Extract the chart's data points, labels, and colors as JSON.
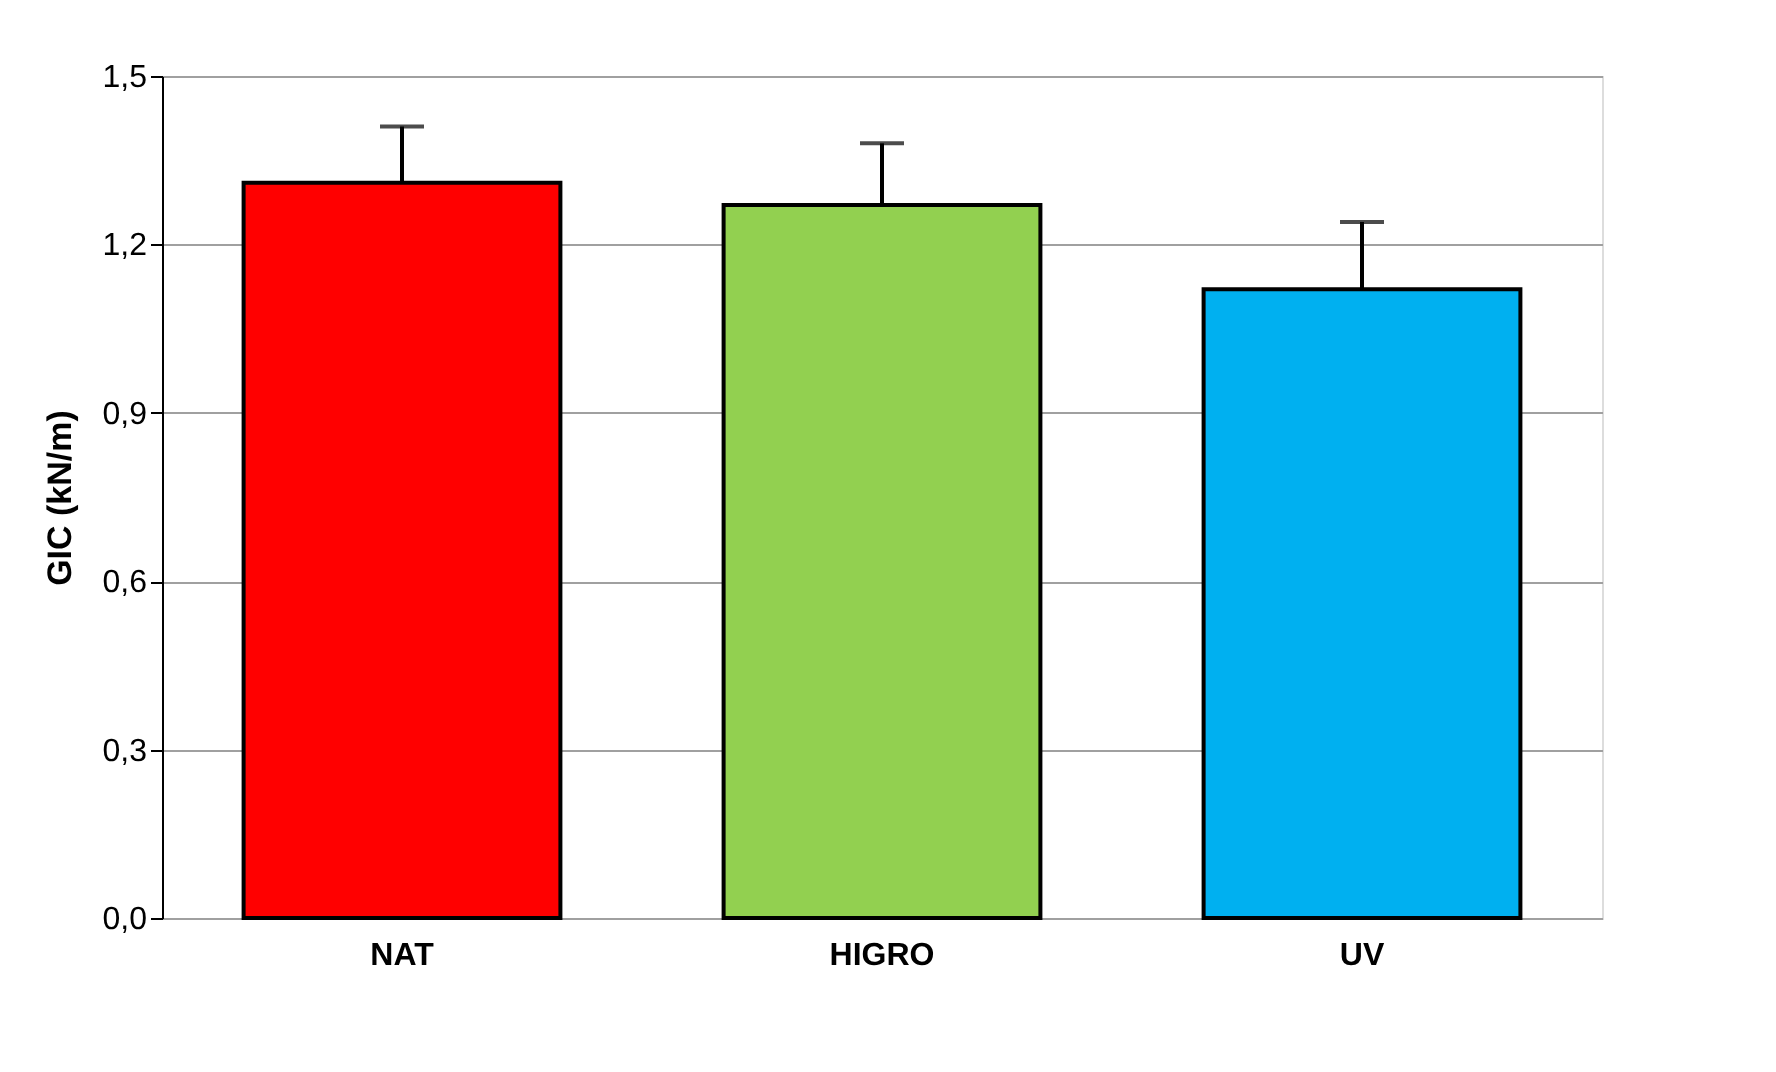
{
  "chart_data": {
    "type": "bar",
    "ylabel": "GIC (kN/m)",
    "categories": [
      "NAT",
      "HIGRO",
      "UV"
    ],
    "values": [
      1.31,
      1.27,
      1.12
    ],
    "colors": [
      "#ff0000",
      "#92d050",
      "#00b0f0"
    ],
    "errors": [
      [
        1.31,
        1.41
      ],
      [
        1.27,
        1.38
      ],
      [
        1.12,
        1.24
      ]
    ],
    "ylim": [
      0,
      1.5
    ],
    "yticks": [
      {
        "value": 0,
        "label": "0,0"
      },
      {
        "value": 0.3,
        "label": "0,3"
      },
      {
        "value": 0.6,
        "label": "0,6"
      },
      {
        "value": 0.9,
        "label": "0,9"
      },
      {
        "value": 1.2,
        "label": "1,2"
      },
      {
        "value": 1.5,
        "label": "1,5"
      }
    ],
    "grid": "y"
  }
}
